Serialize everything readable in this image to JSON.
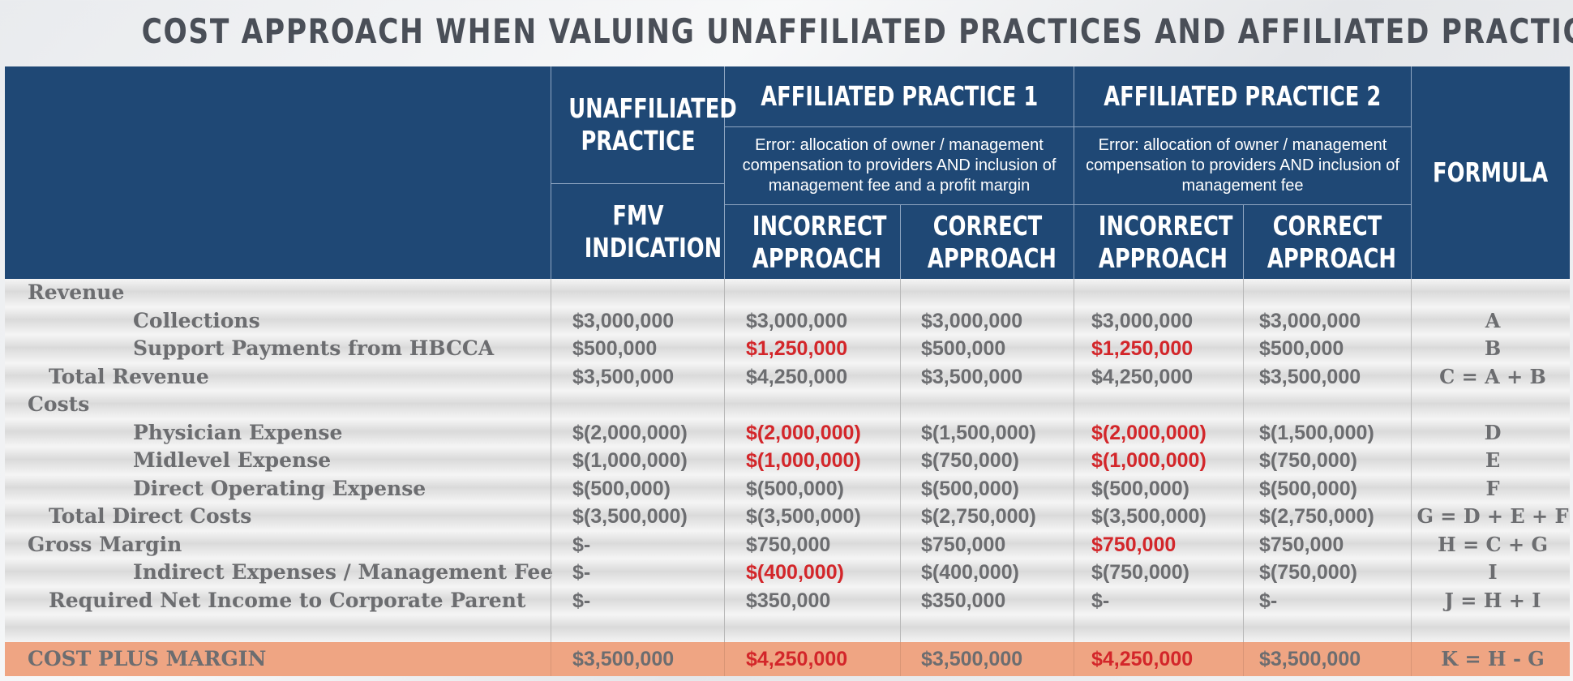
{
  "title": "COST APPROACH WHEN VALUING UNAFFILIATED PRACTICES AND AFFILIATED PRACTICES",
  "header": {
    "unaffiliated": "UNAFFILIATED PRACTICE",
    "affiliated1": "AFFILIATED PRACTICE 1",
    "affiliated2": "AFFILIATED PRACTICE 2",
    "error1": "Error: allocation of owner / management compensation to providers AND inclusion of management fee and a profit margin",
    "error2": "Error: allocation of owner / management compensation to providers AND inclusion of management fee",
    "formula": "FORMULA",
    "fmv": "FMV INDICATION",
    "incorrect": "INCORRECT APPROACH",
    "correct": "CORRECT APPROACH"
  },
  "rows": [
    {
      "label": "Revenue",
      "indent": 0,
      "values": [
        "",
        "",
        "",
        "",
        ""
      ],
      "red": [],
      "formula": ""
    },
    {
      "label": "Collections",
      "indent": 2,
      "values": [
        "$3,000,000",
        "$3,000,000",
        "$3,000,000",
        "$3,000,000",
        "$3,000,000"
      ],
      "red": [],
      "formula": "A"
    },
    {
      "label": "Support Payments from HBCCA",
      "indent": 2,
      "values": [
        "$500,000",
        "$1,250,000",
        "$500,000",
        "$1,250,000",
        "$500,000"
      ],
      "red": [
        1,
        3
      ],
      "formula": "B"
    },
    {
      "label": "Total Revenue",
      "indent": 1,
      "values": [
        "$3,500,000",
        "$4,250,000",
        "$3,500,000",
        "$4,250,000",
        "$3,500,000"
      ],
      "red": [],
      "formula": "C = A + B"
    },
    {
      "label": "Costs",
      "indent": 0,
      "values": [
        "",
        "",
        "",
        "",
        ""
      ],
      "red": [],
      "formula": ""
    },
    {
      "label": "Physician Expense",
      "indent": 2,
      "values": [
        "$(2,000,000)",
        "$(2,000,000)",
        "$(1,500,000)",
        "$(2,000,000)",
        "$(1,500,000)"
      ],
      "red": [
        1,
        3
      ],
      "formula": "D"
    },
    {
      "label": "Midlevel Expense",
      "indent": 2,
      "values": [
        "$(1,000,000)",
        "$(1,000,000)",
        "$(750,000)",
        "$(1,000,000)",
        "$(750,000)"
      ],
      "red": [
        1,
        3
      ],
      "formula": "E"
    },
    {
      "label": "Direct Operating Expense",
      "indent": 2,
      "values": [
        "$(500,000)",
        "$(500,000)",
        "$(500,000)",
        "$(500,000)",
        "$(500,000)"
      ],
      "red": [],
      "formula": "F"
    },
    {
      "label": "Total Direct Costs",
      "indent": 1,
      "values": [
        "$(3,500,000)",
        "$(3,500,000)",
        "$(2,750,000)",
        "$(3,500,000)",
        "$(2,750,000)"
      ],
      "red": [],
      "formula": "G = D + E + F"
    },
    {
      "label": "Gross Margin",
      "indent": 0,
      "values": [
        "$-",
        "$750,000",
        "$750,000",
        "$750,000",
        "$750,000"
      ],
      "red": [
        3
      ],
      "formula": "H = C + G"
    },
    {
      "label": "Indirect Expenses / Management Fee",
      "indent": 2,
      "values": [
        "$-",
        "$(400,000)",
        "$(400,000)",
        "$(750,000)",
        "$(750,000)"
      ],
      "red": [
        1
      ],
      "formula": "I"
    },
    {
      "label": "Required Net Income to Corporate Parent",
      "indent": 1,
      "values": [
        "$-",
        "$350,000",
        "$350,000",
        "$-",
        "$-"
      ],
      "red": [],
      "formula": "J = H + I"
    }
  ],
  "total_row": {
    "label": "COST PLUS MARGIN",
    "values": [
      "$3,500,000",
      "$4,250,000",
      "$3,500,000",
      "$4,250,000",
      "$3,500,000"
    ],
    "red": [
      1,
      3
    ],
    "formula": "K = H - G"
  }
}
